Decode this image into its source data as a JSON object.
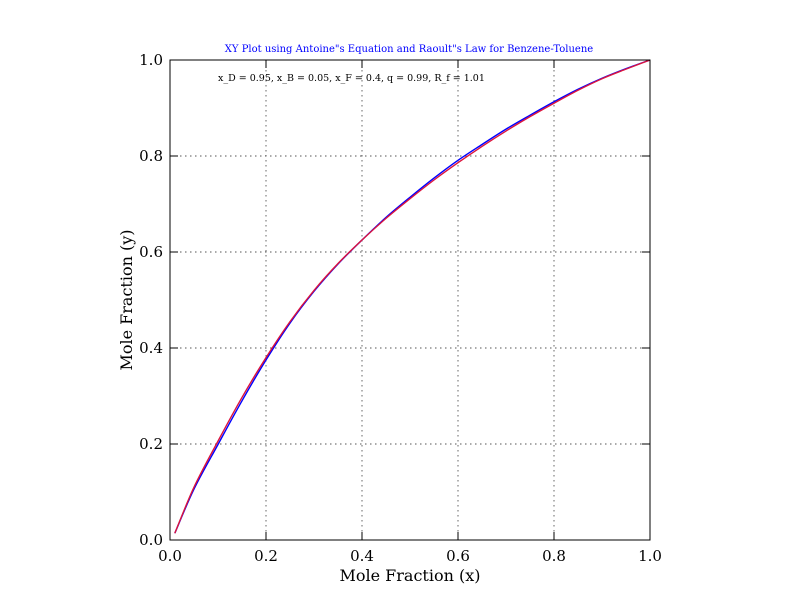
{
  "chart_data": {
    "type": "line",
    "title": "XY Plot using Antoine\"s Equation and Raoult\"s Law for Benzene-Toluene",
    "annotation": "x_D = 0.95, x_B = 0.05, x_F = 0.4, q = 0.99, R_f = 1.01",
    "xlabel": "Mole Fraction (x)",
    "ylabel": "Mole Fraction (y)",
    "xlim": [
      0.0,
      1.0
    ],
    "ylim": [
      0.0,
      1.0
    ],
    "xticks": [
      0.0,
      0.2,
      0.4,
      0.6,
      0.8,
      1.0
    ],
    "yticks": [
      0.0,
      0.2,
      0.4,
      0.6,
      0.8,
      1.0
    ],
    "tick_labels_x": [
      "0.0",
      "0.2",
      "0.4",
      "0.6",
      "0.8",
      "1.0"
    ],
    "tick_labels_y": [
      "0.0",
      "0.2",
      "0.4",
      "0.6",
      "0.8",
      "1.0"
    ],
    "grid": true,
    "series": [
      {
        "color": "#0000ff",
        "x": [
          0.01,
          0.05,
          0.1,
          0.15,
          0.2,
          0.25,
          0.3,
          0.35,
          0.4,
          0.45,
          0.5,
          0.55,
          0.6,
          0.65,
          0.7,
          0.75,
          0.8,
          0.85,
          0.9,
          0.95,
          1.0
        ],
        "y": [
          0.014,
          0.106,
          0.199,
          0.29,
          0.375,
          0.452,
          0.518,
          0.575,
          0.625,
          0.672,
          0.714,
          0.754,
          0.791,
          0.824,
          0.856,
          0.885,
          0.913,
          0.939,
          0.962,
          0.982,
          1.0
        ]
      },
      {
        "color": "#dc143c",
        "x": [
          0.01,
          0.05,
          0.1,
          0.15,
          0.2,
          0.25,
          0.3,
          0.35,
          0.4,
          0.45,
          0.5,
          0.55,
          0.6,
          0.65,
          0.7,
          0.75,
          0.8,
          0.85,
          0.9,
          0.95,
          1.0
        ],
        "y": [
          0.014,
          0.11,
          0.206,
          0.297,
          0.38,
          0.455,
          0.52,
          0.576,
          0.625,
          0.67,
          0.711,
          0.75,
          0.786,
          0.82,
          0.852,
          0.882,
          0.91,
          0.937,
          0.961,
          0.981,
          1.0
        ]
      }
    ]
  }
}
